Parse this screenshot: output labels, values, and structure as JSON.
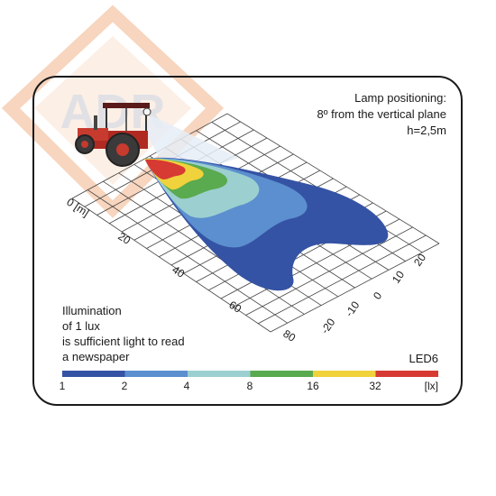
{
  "watermark": {
    "text": "ADR"
  },
  "lamp_info": {
    "line1": "Lamp positioning:",
    "line2": "8º from the vertical plane",
    "line3": "h=2,5m"
  },
  "axis_distance": {
    "unit_label": "0 [m]",
    "ticks": [
      "20",
      "40",
      "60",
      "80"
    ]
  },
  "axis_lateral": {
    "ticks": [
      "20",
      "10",
      "0",
      "-10",
      "-20"
    ]
  },
  "note": {
    "line1": "Illumination",
    "line2": "of 1 lux",
    "line3": "is sufficient light to read",
    "line4": "a newspaper"
  },
  "model": "LED6",
  "scale": {
    "labels": [
      "1",
      "2",
      "4",
      "8",
      "16",
      "32"
    ],
    "unit": "[lx]",
    "colors": [
      "#3553a4",
      "#5b8fcf",
      "#9ccfcf",
      "#5aaa4f",
      "#f0d23c",
      "#d63a32"
    ]
  },
  "colors": {
    "lux_1": "#3553a4",
    "lux_2": "#5b8fcf",
    "lux_4": "#9ccfcf",
    "lux_8": "#5aaa4f",
    "lux_16": "#f0d23c",
    "lux_32": "#d63a32",
    "frame": "#1a1a1a",
    "watermark": "#f7c9a8"
  }
}
